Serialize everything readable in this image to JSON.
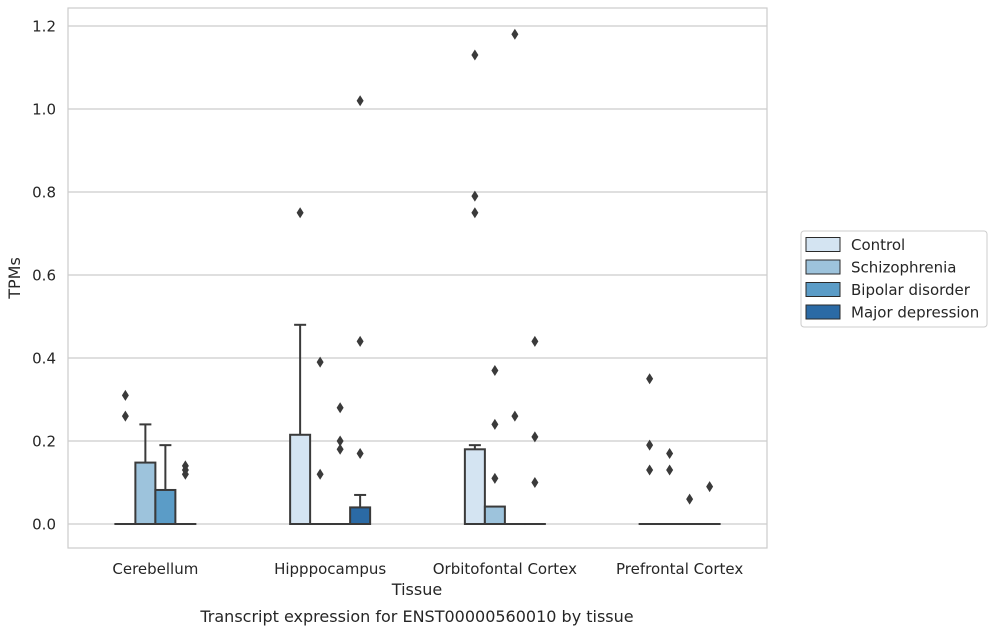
{
  "chart_data": {
    "type": "box",
    "title": "",
    "caption": "Transcript expression for ENST00000560010 by tissue",
    "xlabel": "Tissue",
    "ylabel": "TPMs",
    "ylim": [
      -0.058,
      1.24
    ],
    "yticks": [
      "0.0",
      "0.2",
      "0.4",
      "0.6",
      "0.8",
      "1.0",
      "1.2"
    ],
    "categories": [
      "Cerebellum",
      "Hipppocampus",
      "Orbitofontal Cortex",
      "Prefrontal Cortex"
    ],
    "grid": true,
    "legend_position": "right",
    "series": [
      {
        "name": "Control",
        "color": "#d4e4f2",
        "boxes": [
          {
            "q1": 0,
            "median": 0,
            "q3": 0,
            "whisker_low": 0,
            "whisker_high": 0,
            "outliers": [
              0.31,
              0.26
            ]
          },
          {
            "q1": 0,
            "median": 0,
            "q3": 0.215,
            "whisker_low": 0,
            "whisker_high": 0.48,
            "outliers": [
              0.75
            ]
          },
          {
            "q1": 0,
            "median": 0,
            "q3": 0.18,
            "whisker_low": 0,
            "whisker_high": 0.19,
            "outliers": [
              1.13,
              0.79,
              0.75
            ]
          },
          {
            "q1": 0,
            "median": 0,
            "q3": 0,
            "whisker_low": 0,
            "whisker_high": 0,
            "outliers": [
              0.35,
              0.19,
              0.13
            ]
          }
        ]
      },
      {
        "name": "Schizophrenia",
        "color": "#9dc3dc",
        "boxes": [
          {
            "q1": 0,
            "median": 0,
            "q3": 0.148,
            "whisker_low": 0,
            "whisker_high": 0.24,
            "outliers": []
          },
          {
            "q1": 0,
            "median": 0,
            "q3": 0,
            "whisker_low": 0,
            "whisker_high": 0,
            "outliers": [
              0.39,
              0.12
            ]
          },
          {
            "q1": 0,
            "median": 0,
            "q3": 0.042,
            "whisker_low": 0,
            "whisker_high": 0.042,
            "outliers": [
              0.37,
              0.24,
              0.11
            ]
          },
          {
            "q1": 0,
            "median": 0,
            "q3": 0,
            "whisker_low": 0,
            "whisker_high": 0,
            "outliers": [
              0.17,
              0.13
            ]
          }
        ]
      },
      {
        "name": "Bipolar disorder",
        "color": "#5b9cc7",
        "boxes": [
          {
            "q1": 0,
            "median": 0,
            "q3": 0.082,
            "whisker_low": 0,
            "whisker_high": 0.19,
            "outliers": []
          },
          {
            "q1": 0,
            "median": 0,
            "q3": 0,
            "whisker_low": 0,
            "whisker_high": 0,
            "outliers": [
              0.28,
              0.2,
              0.18
            ]
          },
          {
            "q1": 0,
            "median": 0,
            "q3": 0,
            "whisker_low": 0,
            "whisker_high": 0,
            "outliers": [
              1.18,
              0.26
            ]
          },
          {
            "q1": 0,
            "median": 0,
            "q3": 0,
            "whisker_low": 0,
            "whisker_high": 0,
            "outliers": [
              0.06
            ]
          }
        ]
      },
      {
        "name": "Major depression",
        "color": "#2b6aa5",
        "boxes": [
          {
            "q1": 0,
            "median": 0,
            "q3": 0,
            "whisker_low": 0,
            "whisker_high": 0,
            "outliers": [
              0.14,
              0.13,
              0.12
            ]
          },
          {
            "q1": 0,
            "median": 0,
            "q3": 0.04,
            "whisker_low": 0,
            "whisker_high": 0.07,
            "outliers": [
              1.02,
              0.44,
              0.17
            ]
          },
          {
            "q1": 0,
            "median": 0,
            "q3": 0,
            "whisker_low": 0,
            "whisker_high": 0,
            "outliers": [
              0.44,
              0.21,
              0.1
            ]
          },
          {
            "q1": 0,
            "median": 0,
            "q3": 0,
            "whisker_low": 0,
            "whisker_high": 0,
            "outliers": [
              0.09
            ]
          }
        ]
      }
    ]
  }
}
